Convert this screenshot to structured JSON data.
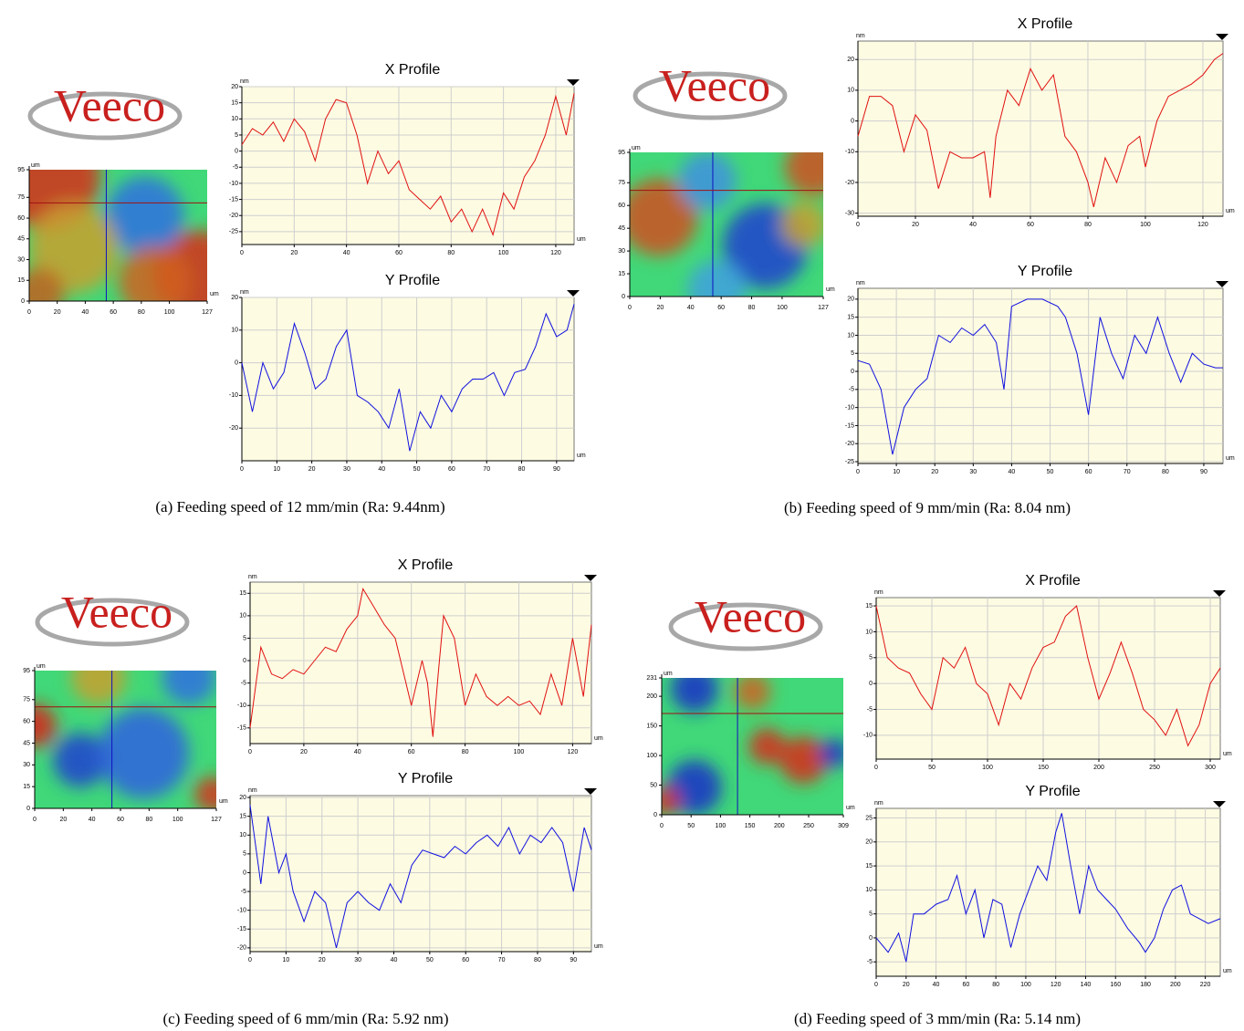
{
  "logo": "Veeco",
  "captions": [
    "(a) Feeding speed of 12 mm/min (Ra: 9.44nm)",
    "(b) Feeding speed of 9 mm/min (Ra: 8.04 nm)",
    "(c) Feeding speed of 6 mm/min (Ra: 5.92 nm)",
    "(d) Feeding speed of 3 mm/min (Ra: 5.14 nm)"
  ],
  "chart_data": [
    {
      "type": "heatmap",
      "xlabel": "um",
      "ylabel": "um",
      "xlim": [
        0,
        127
      ],
      "ylim": [
        0,
        95
      ],
      "xticks": [
        0,
        20,
        40,
        60,
        80,
        100,
        127
      ],
      "yticks": [
        0,
        15,
        30,
        45,
        60,
        75,
        95
      ],
      "crosshair": [
        55,
        71
      ],
      "crosshair_colors": [
        "#1010c0",
        "#a01010"
      ]
    },
    {
      "type": "line",
      "title": "X Profile",
      "xlabel": "um",
      "ylabel": "nm",
      "color": "#e01010",
      "grid": true,
      "xlim": [
        0,
        127
      ],
      "ylim": [
        -29,
        20
      ],
      "xticks": [
        0,
        20,
        40,
        60,
        80,
        100,
        120
      ],
      "yticks": [
        20,
        15,
        10,
        5,
        0,
        -5,
        -10,
        -15,
        -20,
        -25
      ],
      "x": [
        0,
        4,
        8,
        12,
        16,
        20,
        24,
        28,
        32,
        36,
        40,
        44,
        48,
        52,
        56,
        60,
        64,
        68,
        72,
        76,
        80,
        84,
        88,
        92,
        96,
        100,
        104,
        108,
        112,
        116,
        120,
        124,
        127
      ],
      "values": [
        2,
        7,
        5,
        9,
        3,
        10,
        6,
        -3,
        10,
        16,
        15,
        5,
        -10,
        0,
        -7,
        -3,
        -12,
        -15,
        -18,
        -14,
        -22,
        -18,
        -25,
        -18,
        -26,
        -13,
        -18,
        -8,
        -3,
        5,
        17,
        5,
        18
      ]
    },
    {
      "type": "line",
      "title": "Y Profile",
      "xlabel": "um",
      "ylabel": "nm",
      "color": "#1010e0",
      "grid": true,
      "xlim": [
        0,
        95
      ],
      "ylim": [
        -30,
        20
      ],
      "xticks": [
        0,
        10,
        20,
        30,
        40,
        50,
        60,
        70,
        80,
        90
      ],
      "yticks": [
        20,
        10,
        0,
        -10,
        -20
      ],
      "x": [
        0,
        3,
        6,
        9,
        12,
        15,
        18,
        21,
        24,
        27,
        30,
        33,
        36,
        39,
        42,
        45,
        48,
        51,
        54,
        57,
        60,
        63,
        66,
        69,
        72,
        75,
        78,
        81,
        84,
        87,
        90,
        93,
        95
      ],
      "values": [
        0,
        -15,
        0,
        -8,
        -3,
        12,
        3,
        -8,
        -5,
        5,
        10,
        -10,
        -12,
        -15,
        -20,
        -8,
        -27,
        -15,
        -20,
        -10,
        -15,
        -8,
        -5,
        -5,
        -3,
        -10,
        -3,
        -2,
        5,
        15,
        8,
        10,
        18
      ]
    },
    {
      "type": "heatmap",
      "xlabel": "um",
      "ylabel": "um",
      "xlim": [
        0,
        127
      ],
      "ylim": [
        0,
        95
      ],
      "xticks": [
        0,
        20,
        40,
        60,
        80,
        100,
        127
      ],
      "yticks": [
        0,
        15,
        30,
        45,
        60,
        75,
        95
      ],
      "crosshair": [
        54.5,
        70
      ],
      "crosshair_colors": [
        "#1010c0",
        "#a01010"
      ]
    },
    {
      "type": "line",
      "title": "X Profile",
      "xlabel": "um",
      "ylabel": "nm",
      "color": "#e01010",
      "grid": true,
      "xlim": [
        0,
        127
      ],
      "ylim": [
        -31,
        26
      ],
      "xticks": [
        0,
        20,
        40,
        60,
        80,
        100,
        120
      ],
      "yticks": [
        20,
        10,
        0,
        -10,
        -20,
        -30
      ],
      "x": [
        0,
        4,
        8,
        12,
        16,
        20,
        24,
        28,
        32,
        36,
        40,
        44,
        46,
        48,
        52,
        56,
        60,
        64,
        68,
        72,
        76,
        80,
        82,
        86,
        90,
        94,
        98,
        100,
        104,
        108,
        112,
        116,
        120,
        124,
        127
      ],
      "values": [
        -5,
        8,
        8,
        5,
        -10,
        2,
        -3,
        -22,
        -10,
        -12,
        -12,
        -10,
        -25,
        -5,
        10,
        5,
        17,
        10,
        15,
        -5,
        -10,
        -20,
        -28,
        -12,
        -20,
        -8,
        -5,
        -15,
        0,
        8,
        10,
        12,
        15,
        20,
        22
      ]
    },
    {
      "type": "line",
      "title": "Y Profile",
      "xlabel": "um",
      "ylabel": "nm",
      "color": "#1010e0",
      "grid": true,
      "xlim": [
        0,
        95
      ],
      "ylim": [
        -25.5,
        23
      ],
      "xticks": [
        0,
        10,
        20,
        30,
        40,
        50,
        60,
        70,
        80,
        90
      ],
      "yticks": [
        20,
        15,
        10,
        5,
        0,
        -5,
        -10,
        -15,
        -20,
        -25
      ],
      "x": [
        0,
        3,
        6,
        9,
        12,
        15,
        18,
        21,
        24,
        27,
        30,
        33,
        36,
        38,
        40,
        44,
        48,
        52,
        54,
        57,
        60,
        63,
        66,
        69,
        72,
        75,
        78,
        81,
        84,
        87,
        90,
        93,
        95
      ],
      "values": [
        3,
        2,
        -5,
        -23,
        -10,
        -5,
        -2,
        10,
        8,
        12,
        10,
        13,
        8,
        -5,
        18,
        20,
        20,
        18,
        15,
        5,
        -12,
        15,
        5,
        -2,
        10,
        5,
        15,
        5,
        -3,
        5,
        2,
        1,
        1
      ]
    },
    {
      "type": "heatmap",
      "xlabel": "um",
      "ylabel": "um",
      "xlim": [
        0,
        127
      ],
      "ylim": [
        0,
        95
      ],
      "xticks": [
        0,
        20,
        40,
        60,
        80,
        100,
        127
      ],
      "yticks": [
        0,
        15,
        30,
        45,
        60,
        75,
        95
      ],
      "crosshair": [
        54,
        70
      ],
      "crosshair_colors": [
        "#1010c0",
        "#a01010"
      ]
    },
    {
      "type": "line",
      "title": "X Profile",
      "xlabel": "um",
      "ylabel": "nm",
      "color": "#e01010",
      "grid": true,
      "xlim": [
        0,
        127
      ],
      "ylim": [
        -18.5,
        17.5
      ],
      "xticks": [
        0,
        20,
        40,
        60,
        80,
        100,
        120
      ],
      "yticks": [
        15,
        10,
        5,
        0,
        -5,
        -10,
        -15
      ],
      "x": [
        0,
        4,
        8,
        12,
        16,
        20,
        24,
        28,
        32,
        36,
        40,
        42,
        46,
        50,
        54,
        58,
        60,
        64,
        66,
        68,
        70,
        72,
        76,
        80,
        84,
        88,
        92,
        96,
        100,
        104,
        108,
        112,
        116,
        120,
        124,
        127
      ],
      "values": [
        -15,
        3,
        -3,
        -4,
        -2,
        -3,
        0,
        3,
        2,
        7,
        10,
        16,
        12,
        8,
        5,
        -5,
        -10,
        0,
        -5,
        -17,
        -3,
        10,
        5,
        -10,
        -3,
        -8,
        -10,
        -8,
        -10,
        -9,
        -12,
        -3,
        -10,
        5,
        -8,
        8
      ]
    },
    {
      "type": "line",
      "title": "Y Profile",
      "xlabel": "um",
      "ylabel": "nm",
      "color": "#1010e0",
      "grid": true,
      "xlim": [
        0,
        95
      ],
      "ylim": [
        -21,
        20.5
      ],
      "xticks": [
        0,
        10,
        20,
        30,
        40,
        50,
        60,
        70,
        80,
        90
      ],
      "yticks": [
        20,
        15,
        10,
        5,
        0,
        -5,
        -10,
        -15,
        -20
      ],
      "x": [
        0,
        3,
        5,
        8,
        10,
        12,
        15,
        18,
        21,
        24,
        27,
        30,
        33,
        36,
        39,
        42,
        45,
        48,
        51,
        54,
        57,
        60,
        63,
        66,
        69,
        72,
        75,
        78,
        81,
        84,
        87,
        90,
        93,
        95
      ],
      "values": [
        18,
        -3,
        15,
        0,
        5,
        -5,
        -13,
        -5,
        -8,
        -20,
        -8,
        -5,
        -8,
        -10,
        -3,
        -8,
        2,
        6,
        5,
        4,
        7,
        5,
        8,
        10,
        7,
        12,
        5,
        10,
        8,
        12,
        8,
        -5,
        12,
        6
      ]
    },
    {
      "type": "heatmap",
      "xlabel": "um",
      "ylabel": "um",
      "xlim": [
        0,
        309
      ],
      "ylim": [
        0,
        231
      ],
      "xticks": [
        0,
        50,
        100,
        150,
        200,
        250,
        309
      ],
      "yticks": [
        0,
        50,
        100,
        150,
        200,
        231
      ],
      "crosshair": [
        129,
        171
      ],
      "crosshair_colors": [
        "#1010c0",
        "#a01010"
      ]
    },
    {
      "type": "line",
      "title": "X Profile",
      "xlabel": "um",
      "ylabel": "nm",
      "color": "#e01010",
      "grid": true,
      "xlim": [
        0,
        309
      ],
      "ylim": [
        -14.6,
        16.6
      ],
      "xticks": [
        0,
        50,
        100,
        150,
        200,
        250,
        300
      ],
      "yticks": [
        15,
        10,
        5,
        0,
        -5,
        -10
      ],
      "x": [
        0,
        10,
        20,
        30,
        40,
        50,
        60,
        70,
        80,
        90,
        100,
        110,
        120,
        130,
        140,
        150,
        160,
        170,
        180,
        190,
        200,
        210,
        220,
        230,
        240,
        250,
        260,
        270,
        280,
        290,
        300,
        309
      ],
      "values": [
        15,
        5,
        3,
        2,
        -2,
        -5,
        5,
        3,
        7,
        0,
        -2,
        -8,
        0,
        -3,
        3,
        7,
        8,
        13,
        15,
        5,
        -3,
        2,
        8,
        2,
        -5,
        -7,
        -10,
        -5,
        -12,
        -8,
        0,
        3
      ]
    },
    {
      "type": "line",
      "title": "Y Profile",
      "xlabel": "um",
      "ylabel": "nm",
      "color": "#1010e0",
      "grid": true,
      "xlim": [
        0,
        230
      ],
      "ylim": [
        -8,
        27
      ],
      "xticks": [
        0,
        20,
        40,
        60,
        80,
        100,
        120,
        140,
        160,
        180,
        200,
        220
      ],
      "yticks": [
        25,
        20,
        15,
        10,
        5,
        0,
        -5
      ],
      "x": [
        0,
        8,
        15,
        20,
        25,
        32,
        40,
        48,
        54,
        60,
        66,
        72,
        78,
        84,
        90,
        96,
        102,
        108,
        114,
        120,
        124,
        130,
        136,
        142,
        148,
        154,
        160,
        168,
        176,
        180,
        186,
        192,
        198,
        204,
        210,
        216,
        222,
        230
      ],
      "values": [
        0,
        -3,
        1,
        -5,
        5,
        5,
        7,
        8,
        13,
        5,
        10,
        0,
        8,
        7,
        -2,
        5,
        10,
        15,
        12,
        22,
        26,
        15,
        5,
        15,
        10,
        8,
        6,
        2,
        -1,
        -3,
        0,
        6,
        10,
        11,
        5,
        4,
        3,
        4
      ]
    }
  ]
}
